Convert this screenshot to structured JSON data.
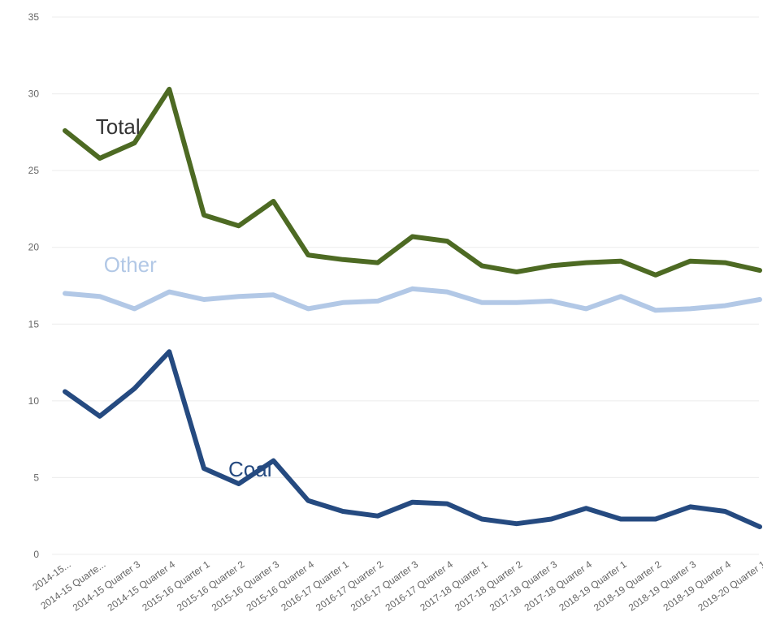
{
  "chart_data": {
    "type": "line",
    "title": "",
    "xlabel": "",
    "ylabel": "",
    "ylim": [
      0,
      35
    ],
    "yticks": [
      0,
      5,
      10,
      15,
      20,
      25,
      30,
      35
    ],
    "grid": true,
    "legend": "inline labels",
    "categories": [
      "2014-15...",
      "2014-15 Quarte...",
      "2014-15 Quarter 3",
      "2014-15 Quarter 4",
      "2015-16 Quarter 1",
      "2015-16 Quarter 2",
      "2015-16 Quarter 3",
      "2015-16 Quarter 4",
      "2016-17 Quarter 1",
      "2016-17 Quarter 2",
      "2016-17 Quarter 3",
      "2016-17 Quarter 4",
      "2017-18 Quarter 1",
      "2017-18 Quarter 2",
      "2017-18 Quarter 3",
      "2017-18 Quarter 4",
      "2018-19 Quarter 1",
      "2018-19 Quarter 2",
      "2018-19 Quarter 3",
      "2018-19 Quarter 4",
      "2019-20 Quarter 1"
    ],
    "series": [
      {
        "name": "Total",
        "color": "#4d6a23",
        "label_at": 1,
        "values": [
          27.6,
          25.8,
          26.8,
          30.3,
          22.1,
          21.4,
          23.0,
          19.5,
          19.2,
          19.0,
          20.7,
          20.4,
          18.8,
          18.4,
          18.8,
          19.0,
          19.1,
          18.2,
          19.1,
          19.0,
          18.5
        ]
      },
      {
        "name": "Other",
        "color": "#b2c8e6",
        "label_at": 1,
        "values": [
          17.0,
          16.8,
          16.0,
          17.1,
          16.6,
          16.8,
          16.9,
          16.0,
          16.4,
          16.5,
          17.3,
          17.1,
          16.4,
          16.4,
          16.5,
          16.0,
          16.8,
          15.9,
          16.0,
          16.2,
          16.6
        ]
      },
      {
        "name": "Coal",
        "color": "#254a80",
        "label_at": 4,
        "values": [
          10.6,
          9.0,
          10.8,
          13.2,
          5.6,
          4.6,
          6.1,
          3.5,
          2.8,
          2.5,
          3.4,
          3.3,
          2.3,
          2.0,
          2.3,
          3.0,
          2.3,
          2.3,
          3.1,
          2.8,
          1.8
        ]
      }
    ]
  }
}
